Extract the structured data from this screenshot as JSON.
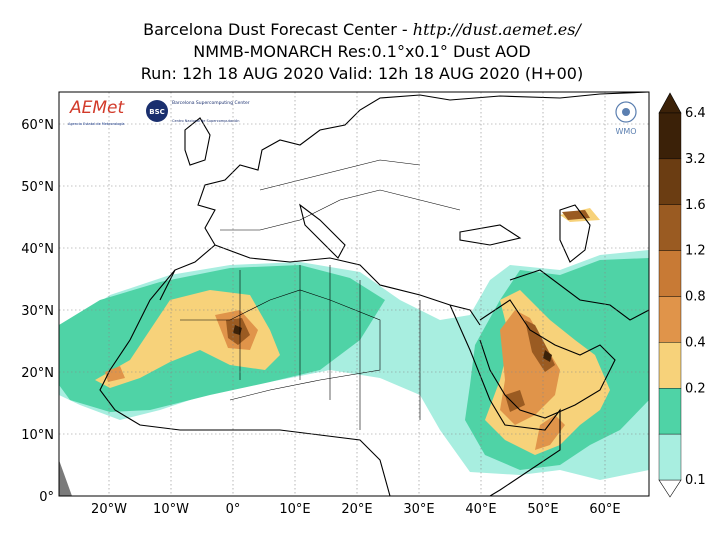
{
  "title": {
    "line1_prefix": "Barcelona Dust Forecast Center - ",
    "line1_url": "http://dust.aemet.es/",
    "line2": "NMMB-MONARCH   Res:0.1°x0.1°   Dust AOD",
    "line3": "Run: 12h 18 AUG 2020   Valid: 12h 18 AUG 2020 (H+00)"
  },
  "axes": {
    "lat_labels": [
      "60°N",
      "50°N",
      "40°N",
      "30°N",
      "20°N",
      "10°N",
      "0°"
    ],
    "lon_labels": [
      "20°W",
      "10°W",
      "0°",
      "10°E",
      "20°E",
      "30°E",
      "40°E",
      "50°E",
      "60°E"
    ]
  },
  "logos": {
    "aemet": "AEMet",
    "aemet_sub": "Agencia Estatal de Meteorología",
    "bsc": "BSC",
    "bsc_name": "Barcelona Supercomputing Center",
    "bsc_sub": "Centro Nacional de Supercomputación",
    "wmo": "WMO"
  },
  "colorbar": {
    "labels": [
      "6.4",
      "3.2",
      "1.6",
      "1.2",
      "0.8",
      "0.4",
      "0.2",
      "0.1"
    ],
    "colors": [
      "#3b2108",
      "#6b3d12",
      "#9a5b22",
      "#c87a35",
      "#e0944a",
      "#f7d27a",
      "#4fd3a6",
      "#a8eee0"
    ]
  },
  "chart_data": {
    "type": "heatmap",
    "variable": "Dust AOD",
    "lon_range": [
      -28,
      68
    ],
    "lat_range": [
      0,
      65
    ],
    "levels": [
      0.1,
      0.2,
      0.4,
      0.8,
      1.2,
      1.6,
      3.2,
      6.4
    ]
  }
}
